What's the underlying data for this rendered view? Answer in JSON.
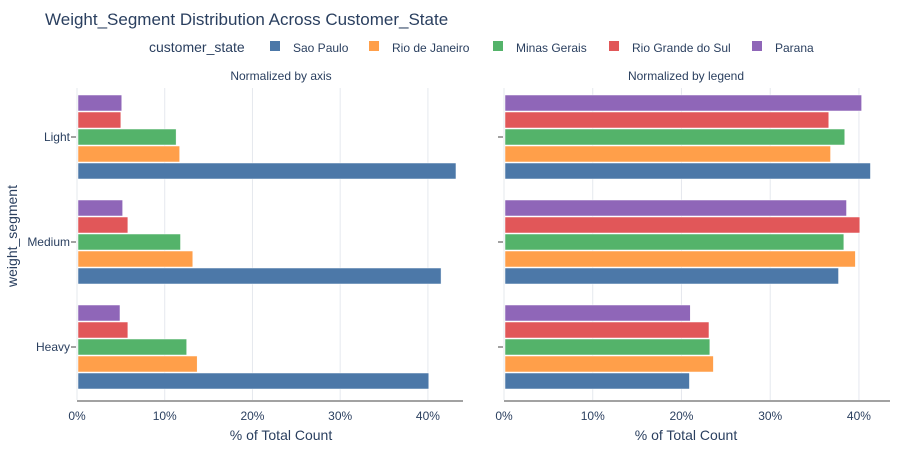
{
  "chart_data": {
    "type": "bar",
    "orientation": "horizontal",
    "title": "Weight_Segment Distribution Across Customer_State",
    "legend": {
      "title": "customer_state",
      "placement": "top-center"
    },
    "ylabel": "weight_segment",
    "categories": [
      "Light",
      "Medium",
      "Heavy"
    ],
    "series_colors": [
      "#4c78a8",
      "#ff9f4a",
      "#54b36a",
      "#e15759",
      "#8f66b8"
    ],
    "series_names": [
      "Sao Paulo",
      "Rio de Janeiro",
      "Minas Gerais",
      "Rio Grande do Sul",
      "Parana"
    ],
    "panels": [
      {
        "subtitle": "Normalized by axis",
        "xlabel": "% of Total Count",
        "xlim": [
          0,
          44
        ],
        "xticks": [
          0,
          10,
          20,
          30,
          40
        ],
        "xtick_labels": [
          "0%",
          "10%",
          "20%",
          "30%",
          "40%"
        ],
        "series": [
          {
            "name": "Sao Paulo",
            "values": [
              43.2,
              41.5,
              40.1
            ]
          },
          {
            "name": "Rio de Janeiro",
            "values": [
              11.7,
              13.2,
              13.7
            ]
          },
          {
            "name": "Minas Gerais",
            "values": [
              11.3,
              11.8,
              12.5
            ]
          },
          {
            "name": "Rio Grande do Sul",
            "values": [
              5.0,
              5.8,
              5.8
            ]
          },
          {
            "name": "Parana",
            "values": [
              5.1,
              5.2,
              4.9
            ]
          }
        ]
      },
      {
        "subtitle": "Normalized by legend",
        "xlabel": "% of Total Count",
        "xlim": [
          0,
          43.5
        ],
        "xticks": [
          0,
          10,
          20,
          30,
          40
        ],
        "xtick_labels": [
          "0%",
          "10%",
          "20%",
          "30%",
          "40%"
        ],
        "series": [
          {
            "name": "Sao Paulo",
            "values": [
              41.3,
              37.7,
              20.9
            ]
          },
          {
            "name": "Rio de Janeiro",
            "values": [
              36.8,
              39.6,
              23.6
            ]
          },
          {
            "name": "Minas Gerais",
            "values": [
              38.4,
              38.3,
              23.2
            ]
          },
          {
            "name": "Rio Grande do Sul",
            "values": [
              36.6,
              40.1,
              23.1
            ]
          },
          {
            "name": "Parana",
            "values": [
              40.3,
              38.6,
              21.0
            ]
          }
        ]
      }
    ]
  }
}
